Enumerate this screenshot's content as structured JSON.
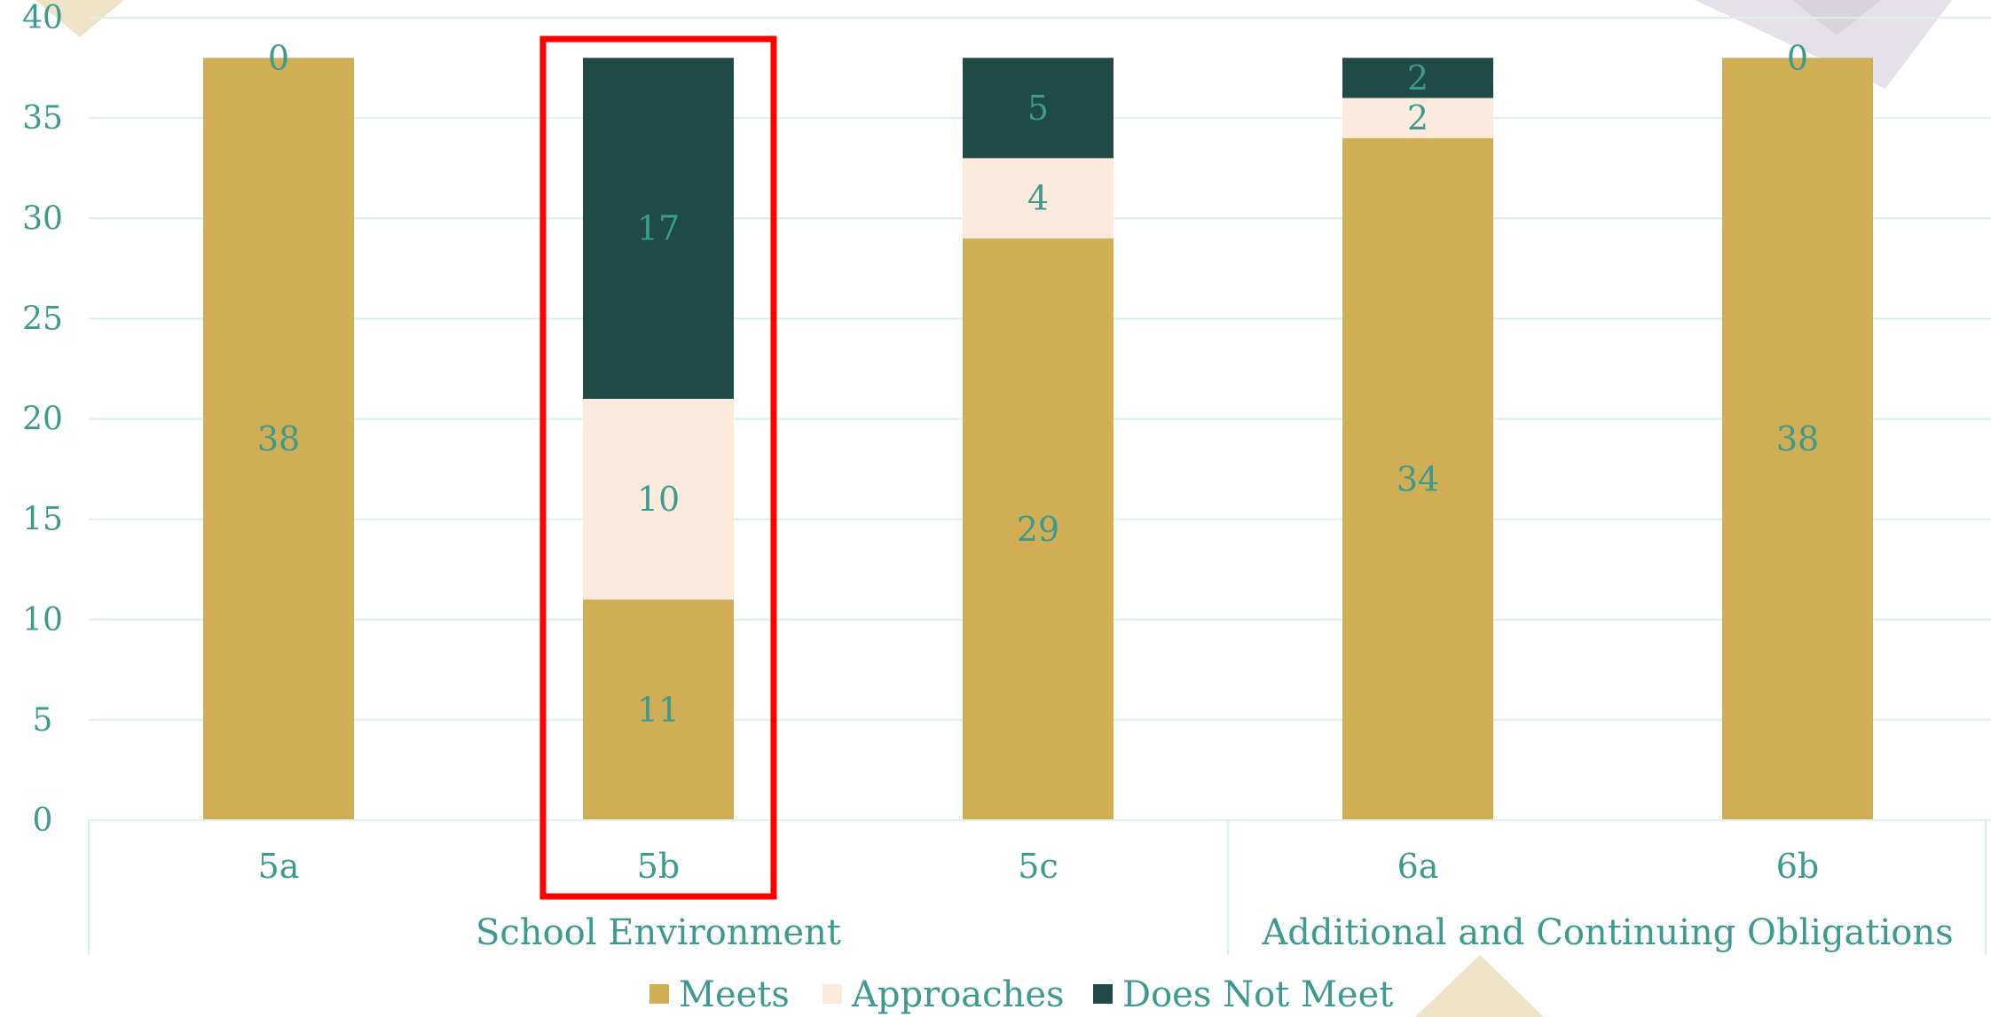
{
  "chart_data": {
    "type": "bar",
    "stacked": true,
    "categories": [
      "5a",
      "5b",
      "5c",
      "6a",
      "6b"
    ],
    "groups": [
      {
        "label": "School Environment",
        "categories": [
          "5a",
          "5b",
          "5c"
        ]
      },
      {
        "label": "Additional and Continuing Obligations",
        "categories": [
          "6a",
          "6b"
        ]
      }
    ],
    "series": [
      {
        "name": "Meets",
        "color": "#cfae56",
        "values": [
          38,
          11,
          29,
          34,
          38
        ]
      },
      {
        "name": "Approaches",
        "color": "#fcebdc",
        "values": [
          null,
          10,
          4,
          2,
          null
        ]
      },
      {
        "name": "Does Not Meet",
        "color": "#1f4a45",
        "values": [
          0,
          17,
          5,
          2,
          0
        ]
      }
    ],
    "ylim": [
      0,
      40
    ],
    "yticks": [
      0,
      5,
      10,
      15,
      20,
      25,
      30,
      35,
      40
    ],
    "grid": true,
    "legend": "bottom",
    "highlighted_category": "5b",
    "highlight_color": "#ff0000",
    "label_color": "#3c9a8e",
    "grid_color": "#dcefeb"
  }
}
